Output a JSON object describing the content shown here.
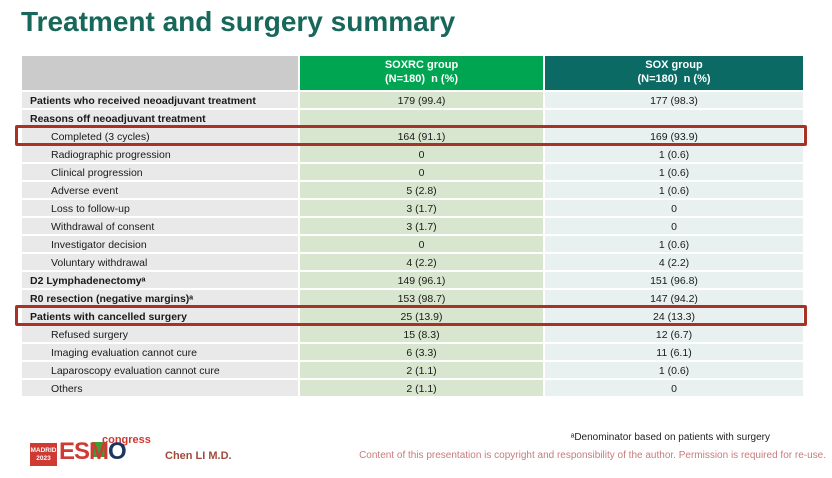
{
  "slide": {
    "title": "Treatment and surgery summary",
    "footnote": "ᵃDenominator based on patients with surgery",
    "copyright": "Content of this presentation is copyright and responsibility of the author. Permission is required for re-use.",
    "author": "Chen LI M.D."
  },
  "logo": {
    "city": "MADRID",
    "year": "2023",
    "letters": [
      "E",
      "S",
      "M",
      "O"
    ],
    "congress": "congress"
  },
  "colors": {
    "title_teal": "#17685a",
    "header_green": "#00a551",
    "header_teal": "#0b6a64",
    "label_gray": "#e9e9e9",
    "body_green": "#d8e6cf",
    "body_teal": "#e9f1f0",
    "highlight_red": "#a93226",
    "logo_red": "#cf3a32",
    "copyright_pink": "#c97b7b"
  },
  "table": {
    "columns": [
      {
        "title": "",
        "subtitle": ""
      },
      {
        "title": "SOXRC group",
        "subtitle": "(N=180)  n (%)"
      },
      {
        "title": "SOX group",
        "subtitle": "(N=180)  n (%)"
      }
    ],
    "rows": [
      {
        "label": "Patients who received neoadjuvant treatment",
        "soxrc": "179 (99.4)",
        "sox": "177 (98.3)",
        "bold": true,
        "indent": false,
        "highlight": false
      },
      {
        "label": "Reasons off neoadjuvant treatment",
        "soxrc": "",
        "sox": "",
        "bold": true,
        "indent": false,
        "highlight": false
      },
      {
        "label": "Completed (3 cycles)",
        "soxrc": "164 (91.1)",
        "sox": "169 (93.9)",
        "bold": false,
        "indent": true,
        "highlight": true
      },
      {
        "label": "Radiographic progression",
        "soxrc": "0",
        "sox": "1 (0.6)",
        "bold": false,
        "indent": true,
        "highlight": false
      },
      {
        "label": "Clinical progression",
        "soxrc": "0",
        "sox": "1 (0.6)",
        "bold": false,
        "indent": true,
        "highlight": false
      },
      {
        "label": "Adverse event",
        "soxrc": "5 (2.8)",
        "sox": "1 (0.6)",
        "bold": false,
        "indent": true,
        "highlight": false
      },
      {
        "label": "Loss to follow-up",
        "soxrc": "3 (1.7)",
        "sox": "0",
        "bold": false,
        "indent": true,
        "highlight": false
      },
      {
        "label": "Withdrawal of consent",
        "soxrc": "3 (1.7)",
        "sox": "0",
        "bold": false,
        "indent": true,
        "highlight": false
      },
      {
        "label": "Investigator decision",
        "soxrc": "0",
        "sox": "1 (0.6)",
        "bold": false,
        "indent": true,
        "highlight": false
      },
      {
        "label": "Voluntary withdrawal",
        "soxrc": "4 (2.2)",
        "sox": "4 (2.2)",
        "bold": false,
        "indent": true,
        "highlight": false
      },
      {
        "label": "D2 Lymphadenectomyᵃ",
        "soxrc": "149 (96.1)",
        "sox": "151 (96.8)",
        "bold": true,
        "indent": false,
        "highlight": false
      },
      {
        "label": "R0 resection (negative margins)ᵃ",
        "soxrc": "153 (98.7)",
        "sox": "147 (94.2)",
        "bold": true,
        "indent": false,
        "highlight": false
      },
      {
        "label": "Patients with cancelled surgery",
        "soxrc": "25 (13.9)",
        "sox": "24 (13.3)",
        "bold": true,
        "indent": false,
        "highlight": true
      },
      {
        "label": "Refused surgery",
        "soxrc": "15 (8.3)",
        "sox": "12 (6.7)",
        "bold": false,
        "indent": true,
        "highlight": false
      },
      {
        "label": "Imaging evaluation cannot cure",
        "soxrc": "6 (3.3)",
        "sox": "11 (6.1)",
        "bold": false,
        "indent": true,
        "highlight": false
      },
      {
        "label": "Laparoscopy evaluation cannot cure",
        "soxrc": "2 (1.1)",
        "sox": "1 (0.6)",
        "bold": false,
        "indent": true,
        "highlight": false
      },
      {
        "label": "Others",
        "soxrc": "2 (1.1)",
        "sox": "0",
        "bold": false,
        "indent": true,
        "highlight": false
      }
    ]
  }
}
